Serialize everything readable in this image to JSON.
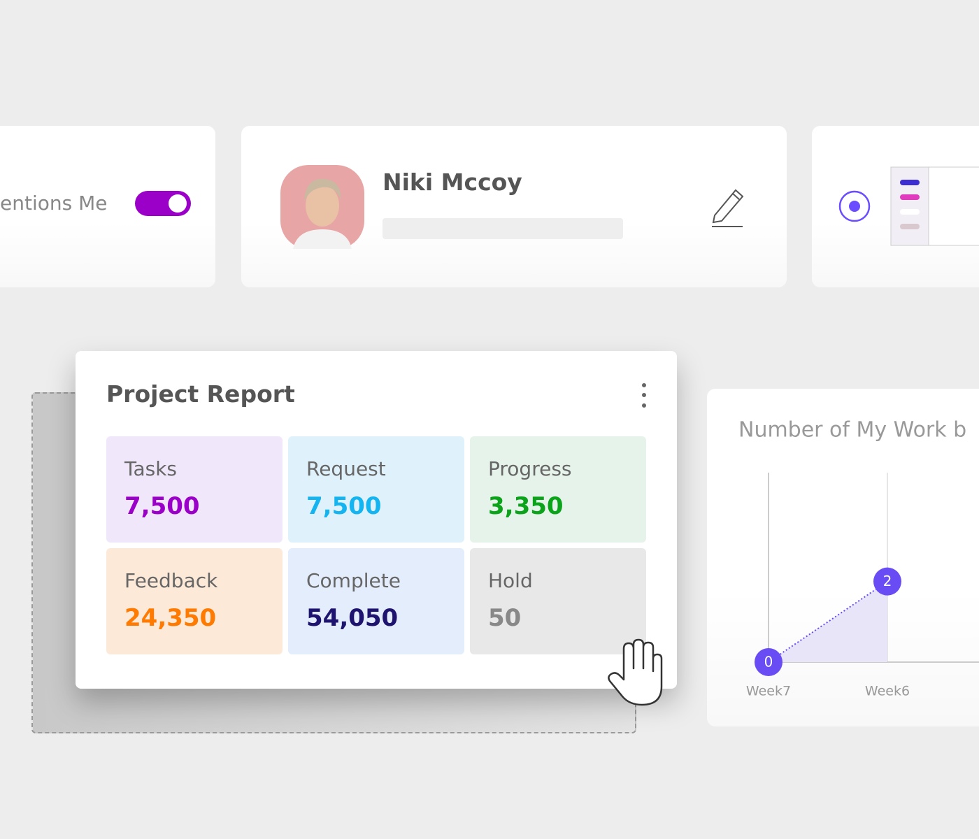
{
  "filter_card": {
    "label": "entions Me"
  },
  "profile_card": {
    "name": "Niki Mccoy"
  },
  "project_report": {
    "title": "Project Report",
    "cells": [
      {
        "label": "Tasks",
        "value": "7,500"
      },
      {
        "label": "Request",
        "value": "7,500"
      },
      {
        "label": "Progress",
        "value": "3,350"
      },
      {
        "label": "Feedback",
        "value": "24,350"
      },
      {
        "label": "Complete",
        "value": "54,050"
      },
      {
        "label": "Hold",
        "value": "50"
      }
    ]
  },
  "chart_data": {
    "type": "line",
    "title": "Number of My Work b",
    "categories": [
      "Week7",
      "Week6"
    ],
    "values": [
      0,
      2
    ],
    "color": "#6a4cf5",
    "ylim": [
      0,
      4.7
    ],
    "grid": true
  }
}
